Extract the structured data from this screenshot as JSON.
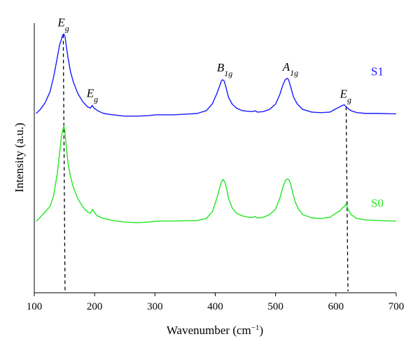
{
  "chart_data": {
    "type": "line",
    "xlabel": "Wavenumber (cm",
    "xlabel_sup": "−1",
    "xlabel_close": ")",
    "ylabel": "Intensity (a.u.)",
    "xlim": [
      100,
      700
    ],
    "x_ticks": [
      "100",
      "200",
      "300",
      "400",
      "500",
      "600",
      "700"
    ],
    "y_ticks": "none",
    "grid": false,
    "legend": "inline labels at right",
    "series": [
      {
        "name": "S1",
        "color": "#1a1aff",
        "baseline": 0.665,
        "x": [
          103,
          110,
          118,
          126,
          132,
          138,
          142,
          145,
          147,
          149,
          151,
          153,
          156,
          160,
          165,
          172,
          180,
          188,
          193,
          196,
          199,
          205,
          215,
          230,
          250,
          270,
          290,
          300,
          310,
          330,
          350,
          370,
          385,
          395,
          402,
          407,
          410,
          412,
          415,
          418,
          422,
          428,
          435,
          445,
          455,
          462,
          466,
          470,
          480,
          490,
          500,
          507,
          512,
          516,
          519,
          521,
          523,
          526,
          530,
          536,
          545,
          560,
          575,
          590,
          600,
          607,
          611,
          614,
          617,
          620,
          625,
          635,
          650,
          670,
          690,
          700
        ],
        "y": [
          0.665,
          0.68,
          0.705,
          0.745,
          0.8,
          0.87,
          0.92,
          0.94,
          0.955,
          0.96,
          0.95,
          0.915,
          0.87,
          0.82,
          0.78,
          0.74,
          0.71,
          0.69,
          0.685,
          0.695,
          0.685,
          0.675,
          0.665,
          0.66,
          0.655,
          0.655,
          0.657,
          0.66,
          0.66,
          0.66,
          0.662,
          0.665,
          0.675,
          0.7,
          0.735,
          0.765,
          0.785,
          0.79,
          0.785,
          0.76,
          0.725,
          0.7,
          0.685,
          0.675,
          0.673,
          0.672,
          0.675,
          0.67,
          0.672,
          0.68,
          0.7,
          0.735,
          0.77,
          0.79,
          0.795,
          0.792,
          0.78,
          0.755,
          0.725,
          0.7,
          0.68,
          0.67,
          0.668,
          0.67,
          0.682,
          0.69,
          0.695,
          0.697,
          0.69,
          0.683,
          0.675,
          0.668,
          0.665,
          0.665,
          0.664,
          0.664
        ]
      },
      {
        "name": "S0",
        "color": "#22e622",
        "x": [
          103,
          110,
          118,
          126,
          132,
          138,
          142,
          145,
          147,
          149,
          151,
          153,
          156,
          160,
          165,
          172,
          180,
          188,
          193,
          197,
          200,
          205,
          215,
          230,
          250,
          270,
          290,
          300,
          310,
          330,
          350,
          370,
          385,
          395,
          402,
          407,
          410,
          413,
          416,
          419,
          422,
          428,
          435,
          445,
          455,
          462,
          466,
          470,
          480,
          490,
          500,
          507,
          512,
          516,
          519,
          522,
          525,
          528,
          532,
          538,
          545,
          560,
          575,
          590,
          600,
          607,
          611,
          614,
          617,
          620,
          625,
          635,
          650,
          670,
          690,
          700
        ],
        "y": [
          0.265,
          0.28,
          0.3,
          0.32,
          0.36,
          0.44,
          0.52,
          0.58,
          0.6,
          0.62,
          0.595,
          0.54,
          0.48,
          0.43,
          0.39,
          0.35,
          0.32,
          0.3,
          0.295,
          0.31,
          0.295,
          0.285,
          0.275,
          0.268,
          0.262,
          0.26,
          0.262,
          0.265,
          0.266,
          0.266,
          0.267,
          0.268,
          0.275,
          0.3,
          0.345,
          0.385,
          0.41,
          0.42,
          0.41,
          0.385,
          0.35,
          0.315,
          0.295,
          0.285,
          0.28,
          0.279,
          0.283,
          0.277,
          0.28,
          0.29,
          0.31,
          0.35,
          0.39,
          0.415,
          0.422,
          0.42,
          0.405,
          0.375,
          0.34,
          0.31,
          0.29,
          0.278,
          0.275,
          0.28,
          0.295,
          0.305,
          0.315,
          0.32,
          0.33,
          0.31,
          0.29,
          0.275,
          0.27,
          0.268,
          0.266,
          0.266
        ]
      }
    ],
    "annotations": [
      {
        "base": "E",
        "sub": "g",
        "x": 148,
        "series": "S1"
      },
      {
        "base": "E",
        "sub": "g",
        "x": 196,
        "series": "S1"
      },
      {
        "base": "B",
        "sub": "1g",
        "x": 412,
        "series": "S1"
      },
      {
        "base": "A",
        "sub": "1g",
        "x": 521,
        "series": "S1"
      },
      {
        "base": "E",
        "sub": "g",
        "x": 616,
        "series": "S1"
      }
    ],
    "dashed_markers": [
      {
        "x_top": 148,
        "x_bottom": 151
      },
      {
        "x_top": 617,
        "x_bottom": 620
      }
    ]
  }
}
